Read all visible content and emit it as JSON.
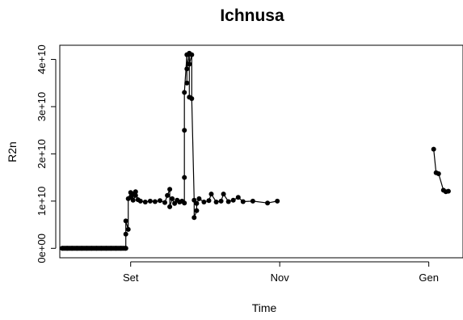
{
  "chart_data": {
    "type": "line",
    "title": "Ichnusa",
    "xlabel": "Time",
    "ylabel": "R2n",
    "x_ticks": [
      "Set",
      "Nov",
      "Gen"
    ],
    "y_ticks": [
      {
        "label": "0e+00",
        "value": 0
      },
      {
        "label": "1e+10",
        "value": 10000000000
      },
      {
        "label": "2e+10",
        "value": 20000000000
      },
      {
        "label": "3e+10",
        "value": 30000000000
      },
      {
        "label": "4e+10",
        "value": 40000000000
      }
    ],
    "x_range": [
      "2015-08-03",
      "2016-01-15"
    ],
    "ylim": [
      -2000000000,
      43000000000
    ],
    "grid": false,
    "series": [
      {
        "marker": "filled-circle",
        "color": "#000000",
        "points": [
          [
            "2015-08-04",
            0
          ],
          [
            "2015-08-06",
            0
          ],
          [
            "2015-08-08",
            0
          ],
          [
            "2015-08-10",
            0
          ],
          [
            "2015-08-12",
            0
          ],
          [
            "2015-08-14",
            0
          ],
          [
            "2015-08-16",
            0
          ],
          [
            "2015-08-18",
            0
          ],
          [
            "2015-08-20",
            0
          ],
          [
            "2015-08-22",
            0
          ],
          [
            "2015-08-24",
            0
          ],
          [
            "2015-08-26",
            0
          ],
          [
            "2015-08-28",
            0
          ],
          [
            "2015-08-30",
            0
          ],
          [
            "2015-08-30",
            3000000000
          ],
          [
            "2015-08-30",
            5800000000
          ],
          [
            "2015-08-31",
            4000000000
          ],
          [
            "2015-08-31",
            10500000000
          ],
          [
            "2015-09-01",
            11800000000
          ],
          [
            "2015-09-01",
            10800000000
          ],
          [
            "2015-09-02",
            11500000000
          ],
          [
            "2015-09-02",
            10200000000
          ],
          [
            "2015-09-03",
            11200000000
          ],
          [
            "2015-09-03",
            12000000000
          ],
          [
            "2015-09-04",
            10300000000
          ],
          [
            "2015-09-05",
            10000000000
          ],
          [
            "2015-09-07",
            9800000000
          ],
          [
            "2015-09-09",
            10000000000
          ],
          [
            "2015-09-11",
            9900000000
          ],
          [
            "2015-09-13",
            10100000000
          ],
          [
            "2015-09-15",
            9700000000
          ],
          [
            "2015-09-16",
            11200000000
          ],
          [
            "2015-09-17",
            12500000000
          ],
          [
            "2015-09-17",
            8800000000
          ],
          [
            "2015-09-18",
            10500000000
          ],
          [
            "2015-09-19",
            9500000000
          ],
          [
            "2015-09-20",
            10200000000
          ],
          [
            "2015-09-21",
            9800000000
          ],
          [
            "2015-09-22",
            10000000000
          ],
          [
            "2015-09-23",
            9600000000
          ],
          [
            "2015-09-23",
            15000000000
          ],
          [
            "2015-09-23",
            25000000000
          ],
          [
            "2015-09-23",
            33000000000
          ],
          [
            "2015-09-24",
            41000000000
          ],
          [
            "2015-09-24",
            35000000000
          ],
          [
            "2015-09-24",
            38000000000
          ],
          [
            "2015-09-25",
            41300000000
          ],
          [
            "2015-09-25",
            32000000000
          ],
          [
            "2015-09-25",
            39000000000
          ],
          [
            "2015-09-26",
            41000000000
          ],
          [
            "2015-09-26",
            31700000000
          ],
          [
            "2015-09-27",
            10200000000
          ],
          [
            "2015-09-27",
            6500000000
          ],
          [
            "2015-09-28",
            8000000000
          ],
          [
            "2015-09-28",
            9500000000
          ],
          [
            "2015-09-29",
            10500000000
          ],
          [
            "2015-10-01",
            9800000000
          ],
          [
            "2015-10-03",
            10100000000
          ],
          [
            "2015-10-04",
            11500000000
          ],
          [
            "2015-10-06",
            9800000000
          ],
          [
            "2015-10-08",
            10000000000
          ],
          [
            "2015-10-09",
            11500000000
          ],
          [
            "2015-10-11",
            9900000000
          ],
          [
            "2015-10-13",
            10200000000
          ],
          [
            "2015-10-15",
            10800000000
          ],
          [
            "2015-10-17",
            9900000000
          ],
          [
            "2015-10-21",
            10000000000
          ],
          [
            "2015-10-27",
            9600000000
          ],
          [
            "2015-10-31",
            10000000000
          ]
        ]
      },
      {
        "marker": "filled-circle",
        "color": "#000000",
        "points": [
          [
            "2016-01-03",
            21000000000
          ],
          [
            "2016-01-04",
            16000000000
          ],
          [
            "2016-01-05",
            15800000000
          ],
          [
            "2016-01-07",
            12300000000
          ],
          [
            "2016-01-08",
            12000000000
          ],
          [
            "2016-01-09",
            12100000000
          ]
        ]
      }
    ]
  }
}
